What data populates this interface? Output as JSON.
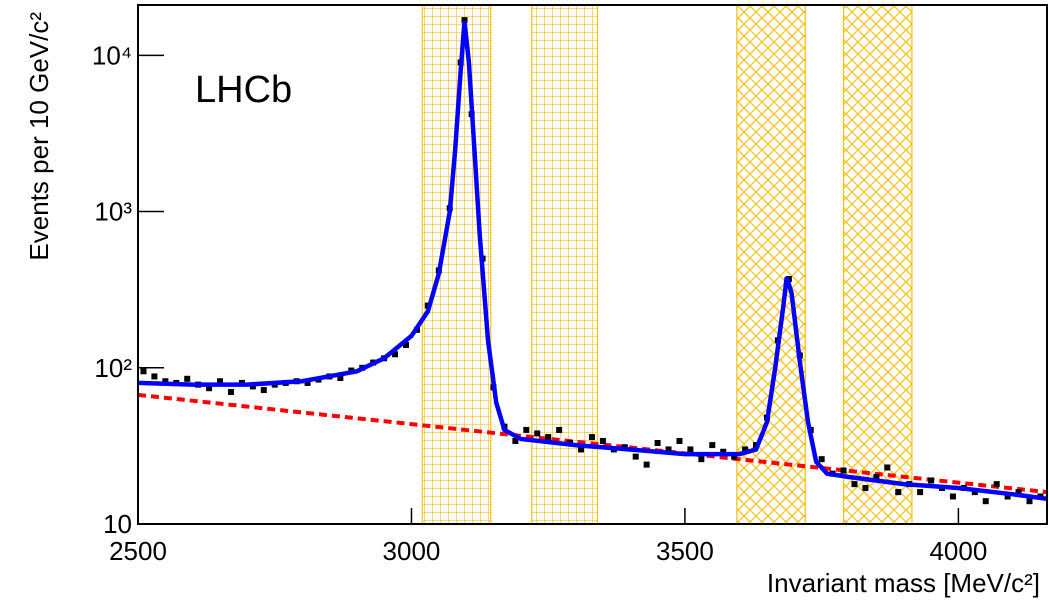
{
  "chart_data": {
    "type": "line",
    "xlabel": "Invariant mass [MeV/c²]",
    "ylabel": "Events per 10 GeV/c²",
    "annotation": "LHCb",
    "xlim": [
      2500,
      4162
    ],
    "ylim": [
      10,
      21000
    ],
    "log_y": true,
    "xticks": [
      2500,
      3000,
      3500,
      4000
    ],
    "yticks": [
      10,
      {
        "value": 100,
        "label": "10²"
      },
      {
        "value": 1000,
        "label": "10³"
      },
      {
        "value": 10000,
        "label": "10⁴"
      }
    ],
    "regions": [
      {
        "xlim": [
          3020,
          3145
        ],
        "pattern": "grid",
        "color": "#f5c31c"
      },
      {
        "xlim": [
          3220,
          3340
        ],
        "pattern": "grid",
        "color": "#f5c31c"
      },
      {
        "xlim": [
          3595,
          3720
        ],
        "pattern": "cross",
        "color": "#f5c31c"
      },
      {
        "xlim": [
          3790,
          3915
        ],
        "pattern": "cross",
        "color": "#f5c31c"
      }
    ],
    "series": [
      {
        "style": "dashed",
        "color": "#ff0000",
        "x": [
          2500,
          4162
        ],
        "values": [
          67,
          16
        ]
      },
      {
        "style": "points",
        "color": "#000000",
        "x": [
          2510,
          2530,
          2550,
          2570,
          2590,
          2610,
          2630,
          2650,
          2670,
          2690,
          2710,
          2730,
          2750,
          2770,
          2790,
          2810,
          2830,
          2850,
          2870,
          2890,
          2910,
          2930,
          2950,
          2970,
          2990,
          3010,
          3030,
          3050,
          3070,
          3090,
          3097,
          3110,
          3130,
          3150,
          3170,
          3190,
          3210,
          3230,
          3250,
          3270,
          3290,
          3310,
          3330,
          3350,
          3370,
          3390,
          3410,
          3430,
          3450,
          3470,
          3490,
          3510,
          3530,
          3550,
          3570,
          3590,
          3610,
          3630,
          3650,
          3670,
          3690,
          3710,
          3730,
          3750,
          3770,
          3790,
          3810,
          3830,
          3850,
          3870,
          3890,
          3910,
          3930,
          3950,
          3970,
          3990,
          4010,
          4030,
          4050,
          4070,
          4090,
          4110,
          4130,
          4150
        ],
        "values": [
          95,
          88,
          82,
          80,
          85,
          78,
          74,
          82,
          70,
          80,
          76,
          72,
          78,
          80,
          82,
          80,
          84,
          88,
          86,
          96,
          100,
          108,
          115,
          122,
          140,
          175,
          250,
          420,
          1050,
          9000,
          16800,
          4200,
          500,
          75,
          42,
          34,
          40,
          38,
          36,
          40,
          33,
          30,
          36,
          34,
          30,
          31,
          27,
          24,
          33,
          30,
          34,
          30,
          26,
          32,
          29,
          27,
          30,
          32,
          48,
          150,
          370,
          120,
          40,
          26,
          21,
          22,
          18,
          17,
          20,
          23,
          16,
          18,
          16,
          19,
          17,
          15,
          17,
          16,
          14,
          18,
          15,
          16,
          14,
          15
        ]
      },
      {
        "style": "solid",
        "color": "#0000ff",
        "x": [
          2500,
          2600,
          2700,
          2800,
          2900,
          2950,
          3000,
          3030,
          3050,
          3070,
          3080,
          3090,
          3097,
          3105,
          3115,
          3125,
          3140,
          3155,
          3170,
          3200,
          3300,
          3400,
          3500,
          3600,
          3630,
          3650,
          3665,
          3680,
          3686,
          3695,
          3710,
          3725,
          3740,
          3760,
          3800,
          3900,
          4000,
          4100,
          4162
        ],
        "values": [
          80,
          78,
          78,
          82,
          95,
          115,
          160,
          230,
          400,
          1000,
          2500,
          8000,
          16500,
          9000,
          2500,
          700,
          150,
          60,
          40,
          35,
          32,
          30,
          28,
          28,
          30,
          45,
          100,
          250,
          380,
          300,
          110,
          45,
          25,
          21,
          20,
          18,
          17,
          15.5,
          14.5
        ]
      }
    ]
  }
}
